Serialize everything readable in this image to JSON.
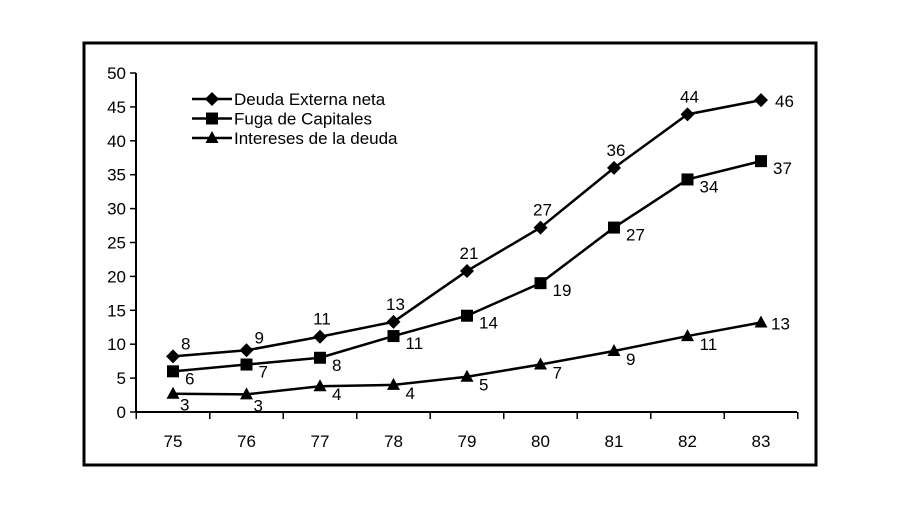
{
  "chart_data": {
    "type": "line",
    "title": "",
    "xlabel": "",
    "ylabel": "",
    "categories": [
      "75",
      "76",
      "77",
      "78",
      "79",
      "80",
      "81",
      "82",
      "83"
    ],
    "ylim": [
      0,
      50
    ],
    "yticks": [
      0,
      5,
      10,
      15,
      20,
      25,
      30,
      35,
      40,
      45,
      50
    ],
    "grid": false,
    "legend": "top-left",
    "series": [
      {
        "name": "Deuda Externa neta",
        "marker": "diamond",
        "values": [
          8.2,
          9.1,
          11.1,
          13.3,
          20.8,
          27.2,
          36.0,
          43.9,
          46.0
        ],
        "labels": [
          "8",
          "9",
          "11",
          "13",
          "21",
          "27",
          "36",
          "44",
          "46"
        ]
      },
      {
        "name": "Fuga de Capitales",
        "marker": "square",
        "values": [
          6.0,
          7.0,
          8.0,
          11.2,
          14.2,
          19.0,
          27.2,
          34.3,
          37.0
        ],
        "labels": [
          "6",
          "7",
          "8",
          "11",
          "14",
          "19",
          "27",
          "34",
          "37"
        ]
      },
      {
        "name": "Intereses de la deuda",
        "marker": "triangle",
        "values": [
          2.7,
          2.6,
          3.8,
          4.0,
          5.2,
          7.0,
          9.0,
          11.2,
          13.2
        ],
        "labels": [
          "3",
          "3",
          "4",
          "4",
          "5",
          "7",
          "9",
          "11",
          "13"
        ]
      }
    ],
    "colors": {
      "line": "#000000",
      "frame": "#000000"
    }
  }
}
